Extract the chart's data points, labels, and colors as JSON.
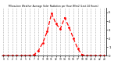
{
  "title": "Milwaukee Weather Average Solar Radiation per Hour W/m2 (Last 24 Hours)",
  "hours": [
    0,
    1,
    2,
    3,
    4,
    5,
    6,
    7,
    8,
    9,
    10,
    11,
    12,
    13,
    14,
    15,
    16,
    17,
    18,
    19,
    20,
    21,
    22,
    23
  ],
  "values": [
    0,
    0,
    0,
    0,
    0,
    0,
    3,
    12,
    60,
    150,
    280,
    490,
    370,
    310,
    440,
    330,
    200,
    80,
    10,
    0,
    0,
    0,
    0,
    0
  ],
  "line_color": "#ff0000",
  "bg_color": "#ffffff",
  "plot_bg_color": "#ffffff",
  "grid_color": "#888888",
  "ylim": [
    0,
    550
  ],
  "yticks": [
    0,
    100,
    200,
    300,
    400,
    500
  ],
  "ytick_labels": [
    "0",
    "1",
    "2",
    "3",
    "4",
    "5"
  ],
  "xtick_labels": [
    "0",
    "1",
    "2",
    "3",
    "4",
    "5",
    "6",
    "7",
    "8",
    "9",
    "10",
    "11",
    "12",
    "13",
    "14",
    "15",
    "16",
    "17",
    "18",
    "19",
    "20",
    "21",
    "22",
    "23"
  ]
}
